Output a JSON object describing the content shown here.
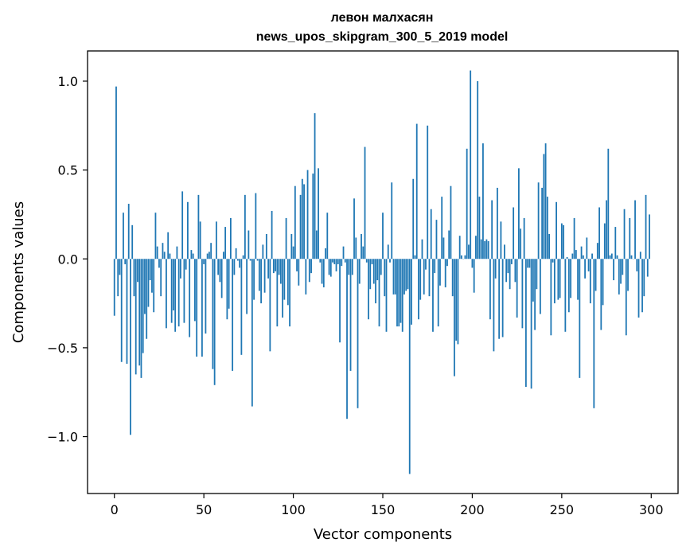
{
  "chart_data": {
    "type": "bar",
    "title": "левон малхасян",
    "subtitle": "news_upos_skipgram_300_5_2019 model",
    "xlabel": "Vector components",
    "ylabel": "Components values",
    "xlim": [
      -15,
      315
    ],
    "ylim": [
      -1.32,
      1.17
    ],
    "xticks": [
      0,
      50,
      100,
      150,
      200,
      250,
      300
    ],
    "xtick_labels": [
      "0",
      "50",
      "100",
      "150",
      "200",
      "250",
      "300"
    ],
    "yticks": [
      -1.0,
      -0.5,
      0.0,
      0.5,
      1.0
    ],
    "ytick_labels": [
      "−1.0",
      "−0.5",
      "0.0",
      "0.5",
      "1.0"
    ],
    "bar_color": "#1f77b4",
    "grid": false,
    "x": [
      0,
      1,
      2,
      3,
      4,
      5,
      6,
      7,
      8,
      9,
      10,
      11,
      12,
      13,
      14,
      15,
      16,
      17,
      18,
      19,
      20,
      21,
      22,
      23,
      24,
      25,
      26,
      27,
      28,
      29,
      30,
      31,
      32,
      33,
      34,
      35,
      36,
      37,
      38,
      39,
      40,
      41,
      42,
      43,
      44,
      45,
      46,
      47,
      48,
      49,
      50,
      51,
      52,
      53,
      54,
      55,
      56,
      57,
      58,
      59,
      60,
      61,
      62,
      63,
      64,
      65,
      66,
      67,
      68,
      69,
      70,
      71,
      72,
      73,
      74,
      75,
      76,
      77,
      78,
      79,
      80,
      81,
      82,
      83,
      84,
      85,
      86,
      87,
      88,
      89,
      90,
      91,
      92,
      93,
      94,
      95,
      96,
      97,
      98,
      99,
      100,
      101,
      102,
      103,
      104,
      105,
      106,
      107,
      108,
      109,
      110,
      111,
      112,
      113,
      114,
      115,
      116,
      117,
      118,
      119,
      120,
      121,
      122,
      123,
      124,
      125,
      126,
      127,
      128,
      129,
      130,
      131,
      132,
      133,
      134,
      135,
      136,
      137,
      138,
      139,
      140,
      141,
      142,
      143,
      144,
      145,
      146,
      147,
      148,
      149,
      150,
      151,
      152,
      153,
      154,
      155,
      156,
      157,
      158,
      159,
      160,
      161,
      162,
      163,
      164,
      165,
      166,
      167,
      168,
      169,
      170,
      171,
      172,
      173,
      174,
      175,
      176,
      177,
      178,
      179,
      180,
      181,
      182,
      183,
      184,
      185,
      186,
      187,
      188,
      189,
      190,
      191,
      192,
      193,
      194,
      195,
      196,
      197,
      198,
      199,
      200,
      201,
      202,
      203,
      204,
      205,
      206,
      207,
      208,
      209,
      210,
      211,
      212,
      213,
      214,
      215,
      216,
      217,
      218,
      219,
      220,
      221,
      222,
      223,
      224,
      225,
      226,
      227,
      228,
      229,
      230,
      231,
      232,
      233,
      234,
      235,
      236,
      237,
      238,
      239,
      240,
      241,
      242,
      243,
      244,
      245,
      246,
      247,
      248,
      249,
      250,
      251,
      252,
      253,
      254,
      255,
      256,
      257,
      258,
      259,
      260,
      261,
      262,
      263,
      264,
      265,
      266,
      267,
      268,
      269,
      270,
      271,
      272,
      273,
      274,
      275,
      276,
      277,
      278,
      279,
      280,
      281,
      282,
      283,
      284,
      285,
      286,
      287,
      288,
      289,
      290,
      291,
      292,
      293,
      294,
      295,
      296,
      297,
      298,
      299
    ],
    "values": [
      -0.32,
      0.97,
      -0.21,
      -0.09,
      -0.58,
      0.26,
      -0.03,
      -0.59,
      0.31,
      -0.99,
      0.19,
      -0.21,
      -0.65,
      -0.13,
      -0.6,
      -0.67,
      -0.53,
      -0.31,
      -0.45,
      -0.27,
      -0.12,
      -0.19,
      -0.3,
      0.26,
      0.07,
      -0.05,
      -0.21,
      0.09,
      0.04,
      -0.39,
      0.15,
      0.03,
      -0.36,
      -0.29,
      -0.41,
      0.07,
      -0.38,
      -0.11,
      0.38,
      -0.36,
      -0.06,
      0.32,
      -0.44,
      0.05,
      0.03,
      -0.35,
      -0.55,
      0.36,
      0.21,
      -0.55,
      -0.03,
      -0.42,
      0.03,
      0.04,
      0.09,
      -0.62,
      -0.71,
      0.21,
      -0.09,
      -0.13,
      -0.22,
      0.04,
      0.18,
      -0.34,
      -0.28,
      0.23,
      -0.63,
      -0.09,
      0.06,
      -0.01,
      -0.05,
      -0.54,
      0.02,
      0.36,
      -0.31,
      0.16,
      -0.01,
      -0.83,
      -0.23,
      0.37,
      -0.01,
      -0.18,
      -0.25,
      0.08,
      -0.19,
      0.14,
      -0.11,
      -0.52,
      0.27,
      -0.08,
      -0.07,
      -0.38,
      -0.09,
      -0.14,
      -0.33,
      -0.23,
      0.23,
      -0.26,
      -0.38,
      0.14,
      0.07,
      0.41,
      -0.07,
      -0.15,
      0.36,
      0.45,
      0.42,
      -0.2,
      0.5,
      -0.13,
      -0.08,
      0.48,
      0.82,
      0.16,
      0.51,
      -0.02,
      -0.14,
      -0.16,
      0.06,
      0.26,
      -0.09,
      -0.1,
      -0.02,
      -0.03,
      -0.07,
      -0.03,
      -0.47,
      -0.04,
      0.07,
      -0.02,
      -0.9,
      -0.09,
      -0.63,
      -0.09,
      0.34,
      0.12,
      -0.84,
      -0.14,
      0.14,
      0.07,
      0.63,
      -0.02,
      -0.34,
      -0.17,
      -0.03,
      -0.14,
      -0.25,
      -0.12,
      -0.38,
      -0.09,
      0.26,
      -0.21,
      -0.41,
      0.08,
      -0.02,
      0.43,
      -0.2,
      -0.2,
      -0.38,
      -0.38,
      -0.36,
      -0.41,
      -0.2,
      -0.18,
      -0.17,
      -1.21,
      -0.37,
      0.45,
      0.02,
      0.76,
      -0.34,
      -0.23,
      0.11,
      -0.2,
      -0.06,
      0.75,
      -0.21,
      0.28,
      -0.41,
      -0.08,
      0.22,
      -0.38,
      -0.15,
      0.35,
      0.12,
      -0.16,
      -0.04,
      0.16,
      0.41,
      -0.21,
      -0.66,
      -0.46,
      -0.48,
      0.13,
      0.02,
      0.0,
      0.02,
      0.62,
      0.08,
      1.06,
      -0.05,
      -0.19,
      0.13,
      1.0,
      0.35,
      0.11,
      0.65,
      0.1,
      0.11,
      0.1,
      -0.34,
      0.33,
      -0.52,
      -0.11,
      0.4,
      -0.45,
      0.21,
      -0.44,
      0.08,
      -0.13,
      -0.08,
      -0.17,
      -0.03,
      0.29,
      -0.13,
      -0.33,
      0.51,
      0.17,
      -0.39,
      0.23,
      -0.72,
      -0.05,
      -0.05,
      -0.73,
      -0.24,
      -0.4,
      -0.17,
      0.43,
      -0.31,
      0.4,
      0.59,
      0.65,
      0.35,
      0.14,
      -0.43,
      -0.02,
      -0.25,
      0.32,
      -0.23,
      -0.22,
      0.2,
      0.19,
      -0.41,
      0.01,
      -0.3,
      -0.22,
      0.03,
      0.23,
      0.05,
      -0.23,
      -0.67,
      0.07,
      0.02,
      -0.11,
      0.12,
      -0.07,
      -0.25,
      0.03,
      -0.84,
      -0.18,
      0.09,
      0.29,
      -0.4,
      -0.26,
      0.2,
      0.33,
      0.62,
      0.02,
      0.03,
      -0.12,
      0.18,
      0.02,
      -0.2,
      -0.14,
      -0.09,
      0.28,
      -0.43,
      -0.18,
      0.23,
      0.02,
      0.0,
      0.33,
      -0.07,
      -0.33,
      0.04,
      -0.3,
      -0.21,
      0.36,
      -0.1,
      0.25
    ]
  }
}
